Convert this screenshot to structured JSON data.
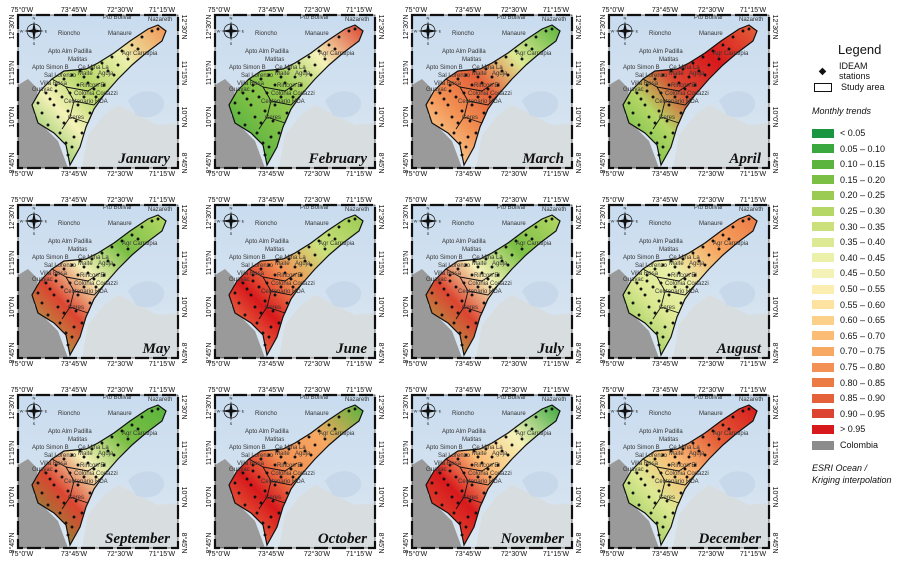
{
  "panels": [
    {
      "month": "January",
      "scheme": "jan"
    },
    {
      "month": "February",
      "scheme": "feb"
    },
    {
      "month": "March",
      "scheme": "mar"
    },
    {
      "month": "April",
      "scheme": "apr"
    },
    {
      "month": "May",
      "scheme": "may"
    },
    {
      "month": "June",
      "scheme": "jun"
    },
    {
      "month": "July",
      "scheme": "jul"
    },
    {
      "month": "August",
      "scheme": "aug"
    },
    {
      "month": "September",
      "scheme": "sep"
    },
    {
      "month": "October",
      "scheme": "oct"
    },
    {
      "month": "November",
      "scheme": "nov"
    },
    {
      "month": "December",
      "scheme": "dec"
    }
  ],
  "ticks": {
    "lon": [
      "75°0'W",
      "73°45'W",
      "72°30'W",
      "71°15'W"
    ],
    "lat": [
      "12°30'N",
      "11°15'N",
      "10°0'N",
      "8°45'N"
    ]
  },
  "places": [
    "Pto Bolivar",
    "Nazareth",
    "Manaure",
    "Rioncho",
    "Apto Alm Padilla",
    "Matitas",
    "Apto Simon B",
    "Sal Lorenzo",
    "Ce Mina La",
    "Rincon El",
    "Villa Rosa",
    "Guayac",
    "Colonia Codazzi",
    "Centenario HDA",
    "Ceres",
    "Agr Carraipia",
    "Maite",
    "Aguja"
  ],
  "compass": {
    "n": "N",
    "s": "S",
    "e": "E",
    "w": "W"
  },
  "legend": {
    "title": "Legend",
    "stations_label": "IDEAM stations",
    "study_label": "Study area",
    "trends_title": "Monthly trends",
    "classes": [
      {
        "label": "< 0.05",
        "color": "#1a9641"
      },
      {
        "label": "0.05 – 0.10",
        "color": "#3aa83f"
      },
      {
        "label": "0.10 – 0.15",
        "color": "#5ab43d"
      },
      {
        "label": "0.15 – 0.20",
        "color": "#7bbf45"
      },
      {
        "label": "0.20 – 0.25",
        "color": "#9bcb52"
      },
      {
        "label": "0.25 – 0.30",
        "color": "#b5d765"
      },
      {
        "label": "0.30 – 0.35",
        "color": "#cbe07b"
      },
      {
        "label": "0.35 – 0.40",
        "color": "#dde993"
      },
      {
        "label": "0.40 – 0.45",
        "color": "#ebf0aa"
      },
      {
        "label": "0.45 – 0.50",
        "color": "#f5f2b8"
      },
      {
        "label": "0.50 – 0.55",
        "color": "#fbeeb0"
      },
      {
        "label": "0.55 – 0.60",
        "color": "#fde2a0"
      },
      {
        "label": "0.60 – 0.65",
        "color": "#fdd08a"
      },
      {
        "label": "0.65 – 0.70",
        "color": "#fbbd76"
      },
      {
        "label": "0.70 – 0.75",
        "color": "#f7a863"
      },
      {
        "label": "0.75 – 0.80",
        "color": "#f29153"
      },
      {
        "label": "0.80 – 0.85",
        "color": "#ec7a45"
      },
      {
        "label": "0.85 – 0.90",
        "color": "#e5613a"
      },
      {
        "label": "0.90 – 0.95",
        "color": "#dc4430"
      },
      {
        "label": "> 0.95",
        "color": "#d7191c"
      },
      {
        "label": "Colombia",
        "color": "#8c8c8c"
      }
    ],
    "note_line1": "ESRI Ocean /",
    "note_line2": "Kriging interpolation"
  }
}
